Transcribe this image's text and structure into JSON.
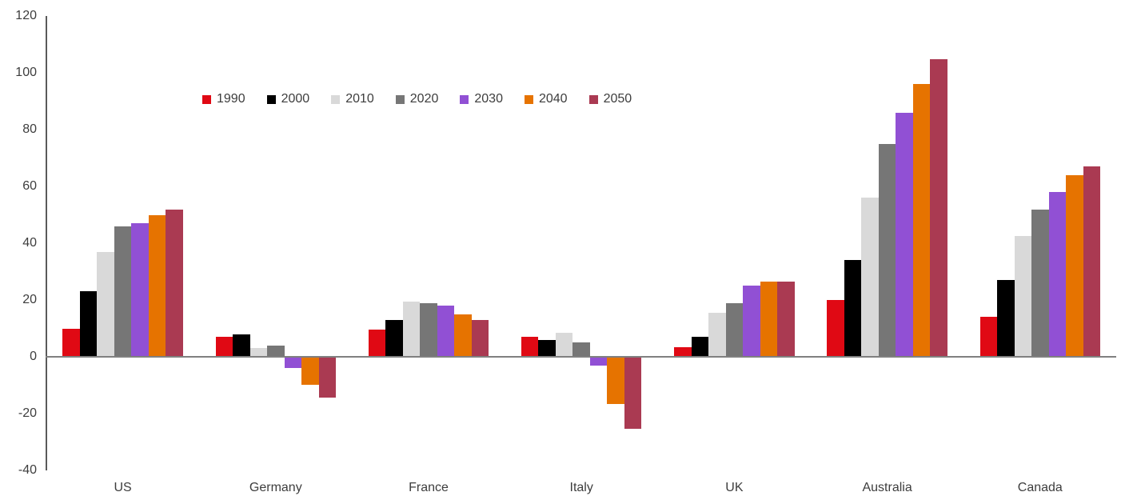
{
  "chart_data": {
    "type": "bar",
    "title": "",
    "xlabel": "",
    "ylabel": "",
    "categories": [
      "US",
      "Germany",
      "France",
      "Italy",
      "UK",
      "Australia",
      "Canada"
    ],
    "series": [
      {
        "name": "1990",
        "color": "#e00914",
        "values": [
          10,
          7,
          9.5,
          7,
          3.5,
          20,
          14
        ]
      },
      {
        "name": "2000",
        "color": "#000000",
        "values": [
          23,
          8,
          13,
          6,
          7,
          34,
          27
        ]
      },
      {
        "name": "2010",
        "color": "#d9d9d9",
        "values": [
          37,
          3,
          19.5,
          8.5,
          15.5,
          56,
          42.5
        ]
      },
      {
        "name": "2020",
        "color": "#767676",
        "values": [
          46,
          4,
          19,
          5,
          19,
          75,
          52
        ]
      },
      {
        "name": "2030",
        "color": "#9150d4",
        "values": [
          47,
          -4,
          18,
          -3,
          25,
          86,
          58
        ]
      },
      {
        "name": "2040",
        "color": "#e67300",
        "values": [
          50,
          -10,
          15,
          -16.5,
          26.5,
          96,
          64
        ]
      },
      {
        "name": "2050",
        "color": "#aa3a52",
        "values": [
          52,
          -14.5,
          13,
          -25.5,
          26.5,
          105,
          67
        ]
      }
    ],
    "ylim": [
      -40,
      120
    ],
    "y_ticks": [
      120,
      100,
      80,
      60,
      40,
      20,
      0,
      -20,
      -40
    ],
    "grid": "off",
    "legend_position": "inside-top-left",
    "axis_color": "#5a5a5a",
    "zero_line_color": "#808080",
    "text_color": "#3d3d3d"
  }
}
